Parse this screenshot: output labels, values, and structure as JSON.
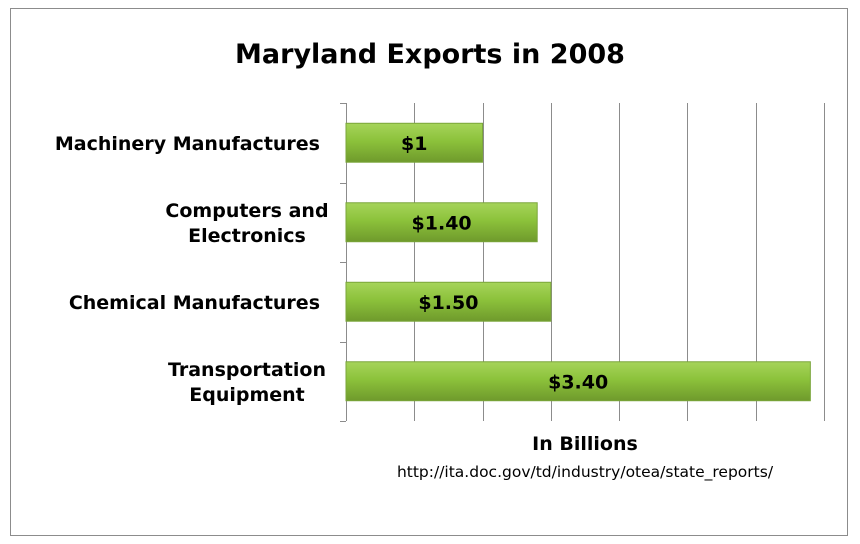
{
  "chart_data": {
    "type": "bar",
    "orientation": "horizontal",
    "title": "Maryland Exports in 2008",
    "xlabel": "In Billions",
    "ylabel": "",
    "source": "http://ita.doc.gov/td/industry/otea/state_reports/",
    "categories": [
      [
        "Machinery Manufactures"
      ],
      [
        "Computers and",
        "Electronics"
      ],
      [
        "Chemical Manufactures"
      ],
      [
        "Transportation",
        "Equipment"
      ]
    ],
    "values": [
      1,
      1.4,
      1.5,
      3.4
    ],
    "data_labels": [
      "$1",
      "$1.40",
      "$1.50",
      "$3.40"
    ],
    "xlim": [
      0,
      3.5
    ],
    "x_major_step": 0.5,
    "grid": true,
    "legend": "none",
    "colors": {
      "bar_top": "#a6d45a",
      "bar_mid": "#8cc23b",
      "bar_bottom": "#6f9a2c",
      "bar_edge": "#7aa53a",
      "gridline": "#8c8c8c",
      "frame": "#8c8c8c"
    }
  }
}
